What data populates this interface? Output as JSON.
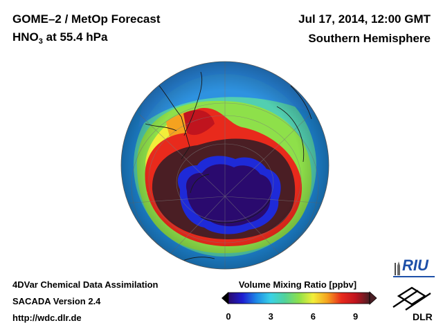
{
  "header": {
    "instrument": "GOME–2 / MetOp Forecast",
    "species": "HNO",
    "species_sub": "3",
    "level": "at 55.4 hPa",
    "datetime": "Jul 17, 2014, 12:00 GMT",
    "region": "Southern Hemisphere"
  },
  "footer": {
    "line1": "4DVar Chemical Data Assimilation",
    "line2": "SACADA Version 2.4",
    "line3": "http://wdc.dlr.de"
  },
  "colorbar": {
    "title": "Volume Mixing Ratio [ppbv]",
    "ticks": [
      "0",
      "3",
      "6",
      "9"
    ],
    "range": [
      0,
      10
    ],
    "colors": [
      "#2a0a6e",
      "#1e1ed2",
      "#1d8ae6",
      "#3ad2e6",
      "#52d29a",
      "#8ee04a",
      "#f2ee3a",
      "#f5a21f",
      "#e82a1c",
      "#c0141e",
      "#4a1e24"
    ]
  },
  "logos": {
    "riu": "RIU",
    "dlr": "DLR"
  },
  "map": {
    "projection": "orthographic",
    "hemisphere": "south",
    "colors": {
      "background": "#52cfb0",
      "outer_ring": "#1f8de0",
      "green_band": "#8ee04a",
      "red_band": "#e82a1c",
      "dark_ring": "#4a1e24",
      "vortex_edge": "#1e2ad8",
      "vortex_core": "#2a0a6e"
    }
  }
}
